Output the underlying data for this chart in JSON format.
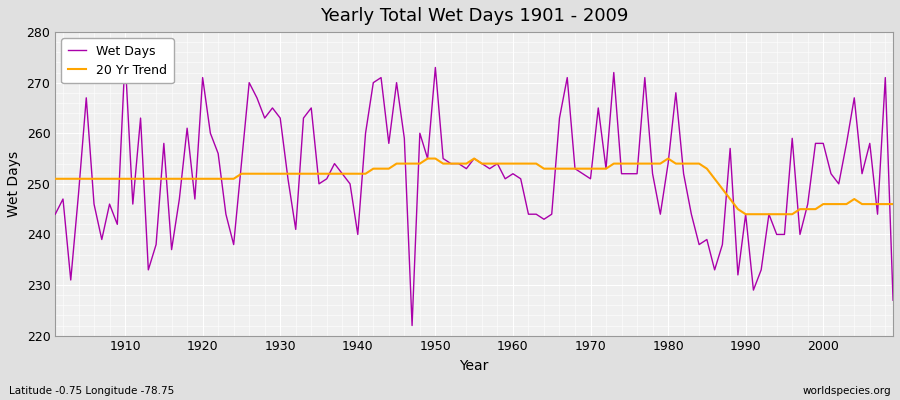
{
  "title": "Yearly Total Wet Days 1901 - 2009",
  "xlabel": "Year",
  "ylabel": "Wet Days",
  "subtitle": "Latitude -0.75 Longitude -78.75",
  "watermark": "worldspecies.org",
  "wet_days_color": "#aa00aa",
  "trend_color": "#ffa500",
  "background_color": "#f0f0f0",
  "fig_background": "#e0e0e0",
  "grid_color": "#ffffff",
  "ylim": [
    220,
    280
  ],
  "xlim": [
    1901,
    2009
  ],
  "years": [
    1901,
    1902,
    1903,
    1904,
    1905,
    1906,
    1907,
    1908,
    1909,
    1910,
    1911,
    1912,
    1913,
    1914,
    1915,
    1916,
    1917,
    1918,
    1919,
    1920,
    1921,
    1922,
    1923,
    1924,
    1925,
    1926,
    1927,
    1928,
    1929,
    1930,
    1931,
    1932,
    1933,
    1934,
    1935,
    1936,
    1937,
    1938,
    1939,
    1940,
    1941,
    1942,
    1943,
    1944,
    1945,
    1946,
    1947,
    1948,
    1949,
    1950,
    1951,
    1952,
    1953,
    1954,
    1955,
    1956,
    1957,
    1958,
    1959,
    1960,
    1961,
    1962,
    1963,
    1964,
    1965,
    1966,
    1967,
    1968,
    1969,
    1970,
    1971,
    1972,
    1973,
    1974,
    1975,
    1976,
    1977,
    1978,
    1979,
    1980,
    1981,
    1982,
    1983,
    1984,
    1985,
    1986,
    1987,
    1988,
    1989,
    1990,
    1991,
    1992,
    1993,
    1994,
    1995,
    1996,
    1997,
    1998,
    1999,
    2000,
    2001,
    2002,
    2003,
    2004,
    2005,
    2006,
    2007,
    2008,
    2009
  ],
  "wet_days": [
    244,
    247,
    231,
    248,
    267,
    246,
    239,
    246,
    242,
    275,
    246,
    263,
    233,
    238,
    258,
    237,
    247,
    261,
    247,
    271,
    260,
    256,
    244,
    238,
    254,
    270,
    267,
    263,
    265,
    263,
    251,
    241,
    263,
    265,
    250,
    251,
    254,
    252,
    250,
    240,
    260,
    270,
    271,
    258,
    270,
    259,
    222,
    260,
    255,
    273,
    255,
    254,
    254,
    253,
    255,
    254,
    253,
    254,
    251,
    252,
    251,
    244,
    244,
    243,
    244,
    263,
    271,
    253,
    252,
    251,
    265,
    253,
    272,
    252,
    252,
    252,
    271,
    252,
    244,
    254,
    268,
    252,
    244,
    238,
    239,
    233,
    238,
    257,
    232,
    244,
    229,
    233,
    244,
    240,
    240,
    259,
    240,
    246,
    258,
    258,
    252,
    250,
    258,
    267,
    252,
    258,
    244,
    271,
    227
  ],
  "trend": [
    251,
    251,
    251,
    251,
    251,
    251,
    251,
    251,
    251,
    251,
    251,
    251,
    251,
    251,
    251,
    251,
    251,
    251,
    251,
    251,
    251,
    251,
    251,
    251,
    252,
    252,
    252,
    252,
    252,
    252,
    252,
    252,
    252,
    252,
    252,
    252,
    252,
    252,
    252,
    252,
    252,
    253,
    253,
    253,
    254,
    254,
    254,
    254,
    255,
    255,
    254,
    254,
    254,
    254,
    255,
    254,
    254,
    254,
    254,
    254,
    254,
    254,
    254,
    253,
    253,
    253,
    253,
    253,
    253,
    253,
    253,
    253,
    254,
    254,
    254,
    254,
    254,
    254,
    254,
    255,
    254,
    254,
    254,
    254,
    253,
    251,
    249,
    247,
    245,
    244,
    244,
    244,
    244,
    244,
    244,
    244,
    245,
    245,
    245,
    246,
    246,
    246,
    246,
    247,
    246,
    246,
    246,
    246,
    246
  ]
}
